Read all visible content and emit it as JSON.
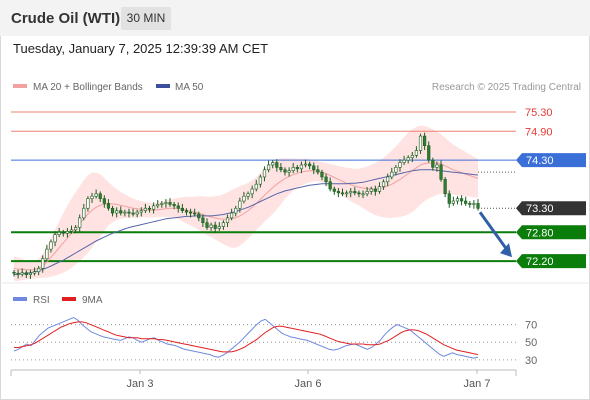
{
  "header": {
    "instrument": "Crude Oil (WTI)",
    "timeframe": "30 MIN"
  },
  "datetime": "Tuesday, January 7, 2025 12:39:39 AM CET",
  "legend": {
    "ma20": "MA 20 + Bollinger Bands",
    "ma50": "MA 50",
    "credit": "Research © 2025 Trading Central"
  },
  "colors": {
    "resistance": "#f08070",
    "pivot": "#3b6fd8",
    "support": "#0a7d0a",
    "last": "#333333",
    "candle_up": "#2e7d32",
    "candle_down": "#2e7d32",
    "bollinger": "#ffd6d6",
    "ma20": "#f2a0a0",
    "ma50": "#5566aa",
    "rsi": "#7088e0",
    "rsi_ma": "#e02020",
    "arrow": "#2f5fa8"
  },
  "chart_data": [
    {
      "type": "candlestick",
      "ylim": [
        71.85,
        75.55
      ],
      "x_ticks": [
        "Jan 3",
        "Jan 6",
        "Jan 7"
      ],
      "levels": [
        {
          "value": 75.3,
          "label": "75.30",
          "kind": "resistance"
        },
        {
          "value": 74.9,
          "label": "74.90",
          "kind": "resistance"
        },
        {
          "value": 74.3,
          "label": "74.30",
          "kind": "pivot"
        },
        {
          "value": 72.8,
          "label": "72.80",
          "kind": "support"
        },
        {
          "value": 72.2,
          "label": "72.20",
          "kind": "support"
        }
      ],
      "last_price": {
        "value": 73.3,
        "label": "73.30"
      },
      "close": [
        71.95,
        71.93,
        71.96,
        71.92,
        71.95,
        71.98,
        72.05,
        72.25,
        72.45,
        72.6,
        72.75,
        72.8,
        72.78,
        72.82,
        72.85,
        72.9,
        73.1,
        73.3,
        73.5,
        73.55,
        73.6,
        73.5,
        73.4,
        73.3,
        73.2,
        73.25,
        73.2,
        73.22,
        73.2,
        73.18,
        73.22,
        73.25,
        73.3,
        73.28,
        73.35,
        73.38,
        73.4,
        73.42,
        73.38,
        73.35,
        73.3,
        73.25,
        73.22,
        73.2,
        73.18,
        73.1,
        73.0,
        72.9,
        72.95,
        72.88,
        72.92,
        73.0,
        73.1,
        73.2,
        73.3,
        73.45,
        73.55,
        73.6,
        73.7,
        73.8,
        73.95,
        74.1,
        74.2,
        74.25,
        74.15,
        74.1,
        74.05,
        74.08,
        74.15,
        74.12,
        74.2,
        74.22,
        74.18,
        74.1,
        74.05,
        73.95,
        73.85,
        73.7,
        73.65,
        73.62,
        73.6,
        73.62,
        73.65,
        73.62,
        73.6,
        73.6,
        73.65,
        73.7,
        73.65,
        73.75,
        73.85,
        73.95,
        74.05,
        74.15,
        74.25,
        74.3,
        74.35,
        74.4,
        74.5,
        74.8,
        74.6,
        74.3,
        74.15,
        74.2,
        73.9,
        73.6,
        73.4,
        73.45,
        73.5,
        73.45,
        73.4,
        73.38,
        73.4,
        73.3
      ],
      "ma20": [
        72.05,
        72.03,
        72.03,
        72.02,
        72.02,
        72.02,
        72.05,
        72.1,
        72.18,
        72.28,
        72.38,
        72.48,
        72.58,
        72.68,
        72.78,
        72.88,
        72.98,
        73.08,
        73.18,
        73.26,
        73.32,
        73.36,
        73.38,
        73.39,
        73.39,
        73.38,
        73.36,
        73.34,
        73.32,
        73.3,
        73.29,
        73.28,
        73.27,
        73.26,
        73.26,
        73.27,
        73.28,
        73.29,
        73.3,
        73.3,
        73.3,
        73.28,
        73.26,
        73.24,
        73.22,
        73.2,
        73.17,
        73.14,
        73.12,
        73.1,
        73.08,
        73.07,
        73.07,
        73.08,
        73.1,
        73.14,
        73.19,
        73.25,
        73.32,
        73.4,
        73.48,
        73.57,
        73.65,
        73.73,
        73.8,
        73.86,
        73.92,
        73.96,
        74.0,
        74.03,
        74.05,
        74.07,
        74.08,
        74.08,
        74.07,
        74.05,
        74.02,
        73.98,
        73.94,
        73.9,
        73.86,
        73.82,
        73.79,
        73.76,
        73.74,
        73.72,
        73.71,
        73.7,
        73.7,
        73.71,
        73.73,
        73.76,
        73.8,
        73.85,
        73.9,
        73.96,
        74.02,
        74.08,
        74.14,
        74.2,
        74.23,
        74.24,
        74.24,
        74.24,
        74.22,
        74.18,
        74.14,
        74.1,
        74.07,
        74.04,
        74.01,
        73.98,
        73.95,
        73.92
      ],
      "ma50": [
        71.92,
        71.93,
        71.94,
        71.95,
        71.96,
        71.98,
        72.0,
        72.03,
        72.06,
        72.1,
        72.14,
        72.18,
        72.22,
        72.27,
        72.32,
        72.37,
        72.42,
        72.47,
        72.52,
        72.57,
        72.62,
        72.66,
        72.7,
        72.74,
        72.78,
        72.81,
        72.84,
        72.87,
        72.9,
        72.92,
        72.94,
        72.96,
        72.98,
        73.0,
        73.02,
        73.04,
        73.06,
        73.08,
        73.09,
        73.1,
        73.11,
        73.12,
        73.13,
        73.13,
        73.14,
        73.14,
        73.14,
        73.14,
        73.14,
        73.15,
        73.16,
        73.17,
        73.19,
        73.21,
        73.23,
        73.26,
        73.29,
        73.32,
        73.36,
        73.4,
        73.44,
        73.48,
        73.52,
        73.56,
        73.6,
        73.63,
        73.66,
        73.68,
        73.7,
        73.72,
        73.74,
        73.76,
        73.78,
        73.79,
        73.8,
        73.81,
        73.81,
        73.81,
        73.81,
        73.81,
        73.81,
        73.81,
        73.82,
        73.82,
        73.83,
        73.84,
        73.86,
        73.88,
        73.9,
        73.92,
        73.94,
        73.96,
        73.98,
        74.0,
        74.02,
        74.04,
        74.06,
        74.08,
        74.09,
        74.1,
        74.1,
        74.1,
        74.1,
        74.09,
        74.08,
        74.07,
        74.06,
        74.05,
        74.04,
        74.03,
        74.02,
        74.01,
        74.0,
        73.99
      ],
      "bb_width": [
        0.25,
        0.25,
        0.22,
        0.2,
        0.18,
        0.18,
        0.2,
        0.25,
        0.32,
        0.4,
        0.48,
        0.55,
        0.62,
        0.68,
        0.72,
        0.75,
        0.78,
        0.8,
        0.8,
        0.78,
        0.72,
        0.65,
        0.55,
        0.45,
        0.38,
        0.32,
        0.28,
        0.25,
        0.22,
        0.2,
        0.18,
        0.17,
        0.16,
        0.15,
        0.15,
        0.15,
        0.16,
        0.17,
        0.18,
        0.2,
        0.22,
        0.25,
        0.28,
        0.3,
        0.32,
        0.35,
        0.38,
        0.4,
        0.42,
        0.45,
        0.48,
        0.52,
        0.56,
        0.6,
        0.62,
        0.62,
        0.6,
        0.58,
        0.56,
        0.55,
        0.55,
        0.55,
        0.55,
        0.55,
        0.52,
        0.48,
        0.42,
        0.38,
        0.34,
        0.3,
        0.28,
        0.26,
        0.24,
        0.22,
        0.21,
        0.21,
        0.22,
        0.24,
        0.26,
        0.28,
        0.3,
        0.32,
        0.34,
        0.36,
        0.38,
        0.42,
        0.46,
        0.5,
        0.54,
        0.58,
        0.62,
        0.66,
        0.7,
        0.74,
        0.78,
        0.82,
        0.85,
        0.86,
        0.85,
        0.82,
        0.78,
        0.74,
        0.7,
        0.66,
        0.62,
        0.58,
        0.55,
        0.52,
        0.5,
        0.48,
        0.46,
        0.44,
        0.42,
        0.4
      ],
      "arrow": {
        "from": 73.3,
        "to": 72.2
      }
    },
    {
      "type": "line",
      "series": [
        {
          "name": "RSI"
        },
        {
          "name": "9MA"
        }
      ],
      "ylim": [
        23,
        82
      ],
      "y_ticks": [
        "70",
        "50",
        "30"
      ],
      "rsi": [
        40,
        42,
        45,
        48,
        46,
        52,
        58,
        62,
        66,
        68,
        70,
        72,
        74,
        76,
        78,
        75,
        70,
        66,
        62,
        60,
        58,
        56,
        55,
        54,
        53,
        52,
        54,
        56,
        55,
        52,
        50,
        52,
        54,
        55,
        52,
        50,
        48,
        47,
        46,
        44,
        42,
        41,
        40,
        39,
        38,
        37,
        36,
        34,
        33,
        35,
        38,
        42,
        46,
        50,
        55,
        60,
        65,
        70,
        74,
        76,
        72,
        68,
        64,
        60,
        58,
        56,
        55,
        54,
        53,
        52,
        50,
        48,
        46,
        44,
        42,
        41,
        42,
        44,
        46,
        47,
        48,
        46,
        44,
        42,
        44,
        48,
        52,
        58,
        63,
        67,
        70,
        68,
        66,
        64,
        60,
        56,
        52,
        48,
        44,
        40,
        36,
        34,
        36,
        38,
        36,
        35,
        34,
        33,
        32,
        33
      ],
      "rsi_ma": [
        44,
        44,
        45,
        46,
        47,
        49,
        52,
        55,
        58,
        61,
        64,
        67,
        69,
        71,
        72,
        73,
        73,
        72,
        70,
        68,
        66,
        64,
        62,
        60,
        58,
        57,
        56,
        55,
        55,
        55,
        54,
        54,
        54,
        54,
        53,
        53,
        52,
        51,
        50,
        49,
        48,
        47,
        46,
        45,
        44,
        43,
        42,
        41,
        40,
        39,
        39,
        39,
        40,
        42,
        44,
        47,
        50,
        53,
        57,
        61,
        64,
        67,
        68,
        68,
        67,
        66,
        65,
        64,
        63,
        62,
        61,
        60,
        59,
        57,
        55,
        53,
        51,
        50,
        49,
        48,
        48,
        48,
        48,
        47,
        47,
        47,
        48,
        50,
        52,
        55,
        58,
        61,
        63,
        64,
        64,
        63,
        61,
        59,
        56,
        53,
        50,
        47,
        45,
        43,
        41,
        40,
        39,
        38,
        37,
        36
      ]
    }
  ]
}
